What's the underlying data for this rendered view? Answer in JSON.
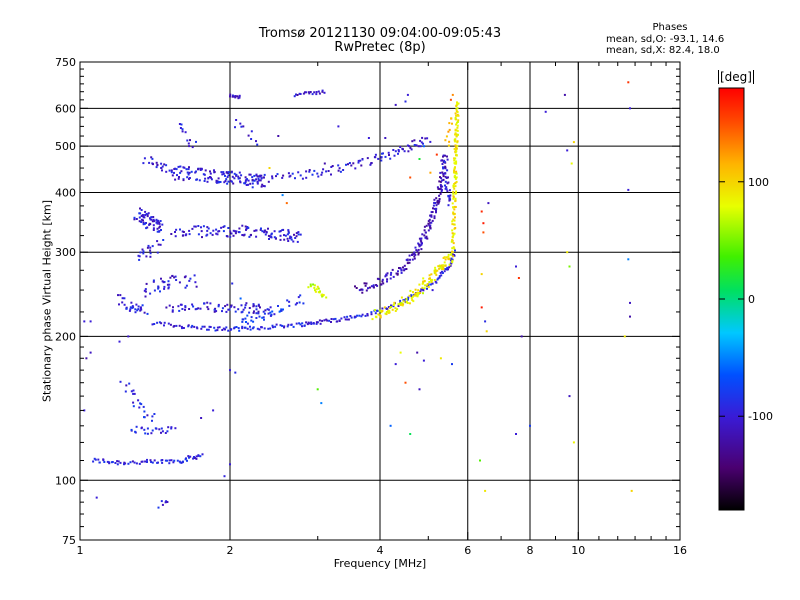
{
  "chart_data": {
    "type": "scatter",
    "title": "Tromsø 20121130 09:04:00-09:05:43",
    "subtitle": "RwPretec (8p)",
    "xlabel": "Frequency [MHz]",
    "ylabel": "Stationary phase Virtual Height [km]",
    "x_scale": "log",
    "y_scale": "log",
    "xlim": [
      1,
      16
    ],
    "ylim": [
      75,
      750
    ],
    "x_ticks": [
      1,
      2,
      4,
      6,
      8,
      10,
      16
    ],
    "x_tick_labels": [
      "1",
      "2",
      "4",
      "6",
      "8",
      "10",
      "16"
    ],
    "y_ticks": [
      75,
      100,
      200,
      300,
      400,
      500,
      600,
      750
    ],
    "y_tick_labels": [
      "75",
      "100",
      "200",
      "300",
      "400",
      "500",
      "600",
      "750"
    ],
    "x_grid": [
      2,
      4,
      6,
      8,
      10
    ],
    "y_grid": [
      100,
      200,
      300,
      400,
      500,
      600
    ],
    "grid": true,
    "colorbar": {
      "label": "[deg]",
      "range": [
        -180,
        180
      ],
      "tick_values": [
        100,
        0,
        -100
      ],
      "tick_labels": [
        "100",
        "0",
        "-100"
      ]
    },
    "stats": {
      "heading": "Phases",
      "o_mode": "mean, sd,O: -93.1, 14.6",
      "x_mode": "mean, sd,X:  82.4, 18.0"
    },
    "series": [
      {
        "traces": [
          {
            "x": [
              1.06,
              1.2,
              1.4,
              1.6,
              1.75
            ],
            "y": [
              110,
              109,
              109,
              110,
              113
            ],
            "phase": -95,
            "spread": 0.015,
            "n": 70
          },
          {
            "x": [
              1.26,
              1.35,
              1.45,
              1.55
            ],
            "y": [
              128,
              127,
              127,
              128
            ],
            "phase": -95,
            "spread": 0.02,
            "n": 25
          },
          {
            "x": [
              1.22,
              1.28,
              1.33,
              1.4
            ],
            "y": [
              160,
              150,
              140,
              135
            ],
            "phase": -95,
            "spread": 0.03,
            "n": 22
          },
          {
            "x": [
              1.45,
              1.51
            ],
            "y": [
              89,
              91
            ],
            "phase": -95,
            "spread": 0.02,
            "n": 6
          },
          {
            "x": [
              1.2,
              1.25,
              1.3,
              1.35
            ],
            "y": [
              240,
              232,
              228,
              226
            ],
            "phase": -95,
            "spread": 0.03,
            "n": 30
          },
          {
            "x": [
              1.4,
              1.6,
              1.8,
              2.0,
              2.2,
              2.5,
              2.8,
              3.0,
              3.3,
              3.6,
              4.0,
              4.4,
              4.8,
              5.2,
              5.5,
              5.65
            ],
            "y": [
              213,
              210,
              208,
              207,
              208,
              210,
              212,
              214,
              217,
              220,
              226,
              235,
              248,
              262,
              280,
              300
            ],
            "phase": -95,
            "spread": 0.012,
            "n": 200
          },
          {
            "x": [
              1.5,
              1.8,
              2.1,
              2.4
            ],
            "y": [
              228,
              230,
              230,
              228
            ],
            "phase": -100,
            "spread": 0.03,
            "n": 70
          },
          {
            "x": [
              1.35,
              1.45,
              1.55,
              1.7
            ],
            "y": [
              250,
              256,
              260,
              262
            ],
            "phase": -100,
            "spread": 0.04,
            "n": 40
          },
          {
            "x": [
              1.3,
              1.38,
              1.45
            ],
            "y": [
              290,
              300,
              310
            ],
            "phase": -100,
            "spread": 0.04,
            "n": 20
          },
          {
            "x": [
              2.1,
              2.3,
              2.5,
              2.8
            ],
            "y": [
              215,
              220,
              228,
              240
            ],
            "phase": -80,
            "spread": 0.03,
            "n": 40
          },
          {
            "x": [
              1.3,
              1.35,
              1.4,
              1.45
            ],
            "y": [
              360,
              352,
              345,
              340
            ],
            "phase": -100,
            "spread": 0.04,
            "n": 60
          },
          {
            "x": [
              1.55,
              1.8,
              2.05,
              2.3,
              2.55,
              2.75
            ],
            "y": [
              330,
              332,
              332,
              330,
              326,
              322
            ],
            "phase": -100,
            "spread": 0.035,
            "n": 120
          },
          {
            "x": [
              1.55,
              1.75,
              1.95,
              2.15,
              2.35
            ],
            "y": [
              440,
              436,
              430,
              425,
              420
            ],
            "phase": -100,
            "spread": 0.04,
            "n": 130
          },
          {
            "x": [
              1.35,
              1.45,
              1.55
            ],
            "y": [
              470,
              450,
              440
            ],
            "phase": -100,
            "spread": 0.03,
            "n": 25
          },
          {
            "x": [
              2.2,
              2.6,
              3.0,
              3.4,
              3.8,
              4.2,
              4.6,
              5.0
            ],
            "y": [
              425,
              432,
              440,
              450,
              465,
              480,
              500,
              520
            ],
            "phase": -100,
            "spread": 0.025,
            "n": 100
          },
          {
            "x": [
              2.7,
              2.9,
              3.1
            ],
            "y": [
              640,
              645,
              650
            ],
            "phase": -110,
            "spread": 0.01,
            "n": 20
          },
          {
            "x": [
              2.0,
              2.1
            ],
            "y": [
              640,
              632
            ],
            "phase": -105,
            "spread": 0.01,
            "n": 12
          },
          {
            "x": [
              1.58,
              1.62,
              1.7
            ],
            "y": [
              560,
              520,
              500
            ],
            "phase": -100,
            "spread": 0.03,
            "n": 12
          },
          {
            "x": [
              2.05,
              2.15,
              2.25
            ],
            "y": [
              565,
              535,
              515
            ],
            "phase": -100,
            "spread": 0.03,
            "n": 10
          },
          {
            "x": [
              3.6,
              4.0,
              4.4,
              4.7,
              4.9,
              5.05,
              5.2,
              5.3,
              5.42
            ],
            "y": [
              250,
              260,
              275,
              295,
              320,
              350,
              380,
              420,
              480
            ],
            "phase": -115,
            "spread": 0.025,
            "n": 170
          },
          {
            "x": [
              5.35,
              5.42,
              5.48,
              5.52
            ],
            "y": [
              470,
              430,
              400,
              380
            ],
            "phase": -100,
            "spread": 0.02,
            "n": 30
          },
          {
            "x": [
              2.9,
              3.1
            ],
            "y": [
              255,
              245
            ],
            "phase": 70,
            "spread": 0.02,
            "n": 20
          },
          {
            "x": [
              3.9,
              4.3,
              4.7,
              5.0,
              5.3,
              5.55
            ],
            "y": [
              222,
              230,
              245,
              262,
              280,
              295
            ],
            "phase": 88,
            "spread": 0.03,
            "n": 130
          },
          {
            "x": [
              5.6,
              5.63,
              5.66,
              5.68,
              5.7,
              5.72
            ],
            "y": [
              300,
              360,
              420,
              480,
              540,
              620
            ],
            "phase": 90,
            "spread": 0.015,
            "n": 130
          },
          {
            "x": [
              5.45,
              5.5,
              5.55
            ],
            "y": [
              500,
              540,
              580
            ],
            "phase": 110,
            "spread": 0.02,
            "n": 10
          }
        ]
      }
    ],
    "scattered_points": [
      [
        1.02,
        215,
        -100
      ],
      [
        1.05,
        215,
        -100
      ],
      [
        1.03,
        180,
        -120
      ],
      [
        1.02,
        140,
        -100
      ],
      [
        1.08,
        92,
        -100
      ],
      [
        1.05,
        185,
        -110
      ],
      [
        1.2,
        195,
        -100
      ],
      [
        1.25,
        200,
        -105
      ],
      [
        2.0,
        170,
        -100
      ],
      [
        2.05,
        168,
        -90
      ],
      [
        2.02,
        258,
        -90
      ],
      [
        2.1,
        240,
        -60
      ],
      [
        2.0,
        108,
        -100
      ],
      [
        1.95,
        102,
        -95
      ],
      [
        1.85,
        140,
        -100
      ],
      [
        1.75,
        135,
        -110
      ],
      [
        2.5,
        525,
        -120
      ],
      [
        2.4,
        450,
        100
      ],
      [
        2.6,
        380,
        140
      ],
      [
        2.55,
        395,
        -50
      ],
      [
        3.3,
        550,
        -100
      ],
      [
        3.1,
        460,
        -120
      ],
      [
        3.0,
        155,
        40
      ],
      [
        3.05,
        145,
        -50
      ],
      [
        3.8,
        520,
        -100
      ],
      [
        4.1,
        520,
        -110
      ],
      [
        4.3,
        610,
        -110
      ],
      [
        4.5,
        620,
        -90
      ],
      [
        4.55,
        640,
        -100
      ],
      [
        4.8,
        470,
        20
      ],
      [
        4.9,
        500,
        -60
      ],
      [
        4.6,
        430,
        150
      ],
      [
        4.4,
        185,
        80
      ],
      [
        4.5,
        160,
        150
      ],
      [
        4.6,
        125,
        10
      ],
      [
        4.2,
        130,
        -60
      ],
      [
        4.3,
        175,
        -100
      ],
      [
        4.8,
        155,
        -110
      ],
      [
        4.75,
        185,
        -120
      ],
      [
        4.9,
        178,
        -100
      ],
      [
        5.05,
        440,
        120
      ],
      [
        5.2,
        480,
        160
      ],
      [
        5.1,
        250,
        -100
      ],
      [
        5.3,
        180,
        90
      ],
      [
        5.55,
        625,
        150
      ],
      [
        5.6,
        640,
        130
      ],
      [
        5.58,
        175,
        -80
      ],
      [
        6.4,
        365,
        165
      ],
      [
        6.45,
        345,
        170
      ],
      [
        6.4,
        230,
        170
      ],
      [
        6.45,
        330,
        150
      ],
      [
        6.55,
        205,
        100
      ],
      [
        6.5,
        215,
        -90
      ],
      [
        6.6,
        380,
        -110
      ],
      [
        6.4,
        270,
        100
      ],
      [
        6.35,
        110,
        40
      ],
      [
        6.5,
        95,
        90
      ],
      [
        7.5,
        280,
        -100
      ],
      [
        7.6,
        265,
        160
      ],
      [
        7.7,
        200,
        -120
      ],
      [
        7.5,
        125,
        -100
      ],
      [
        8.6,
        590,
        -100
      ],
      [
        8.0,
        130,
        -80
      ],
      [
        9.5,
        300,
        90
      ],
      [
        9.6,
        280,
        50
      ],
      [
        9.4,
        640,
        -120
      ],
      [
        9.5,
        490,
        -100
      ],
      [
        9.7,
        460,
        80
      ],
      [
        9.8,
        510,
        100
      ],
      [
        9.8,
        120,
        85
      ],
      [
        9.6,
        150,
        -110
      ],
      [
        12.6,
        680,
        160
      ],
      [
        12.7,
        600,
        -100
      ],
      [
        12.6,
        405,
        -100
      ],
      [
        12.7,
        235,
        -110
      ],
      [
        12.7,
        220,
        -120
      ],
      [
        12.4,
        200,
        90
      ],
      [
        12.8,
        95,
        100
      ],
      [
        12.6,
        290,
        -50
      ]
    ]
  }
}
